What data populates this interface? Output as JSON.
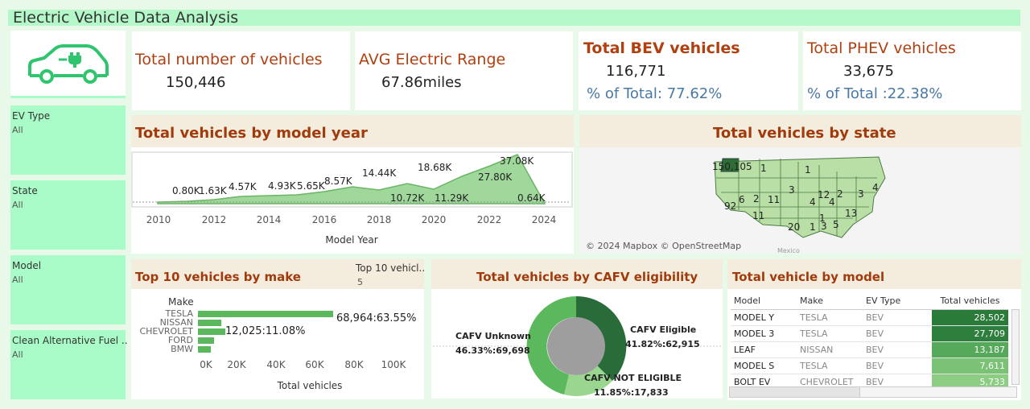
{
  "app": {
    "title": "Electric Vehicle Data Analysis",
    "logo_icon": "ev-car-charging-icon"
  },
  "filters": [
    {
      "label": "EV Type",
      "value": "All"
    },
    {
      "label": "State",
      "value": "All"
    },
    {
      "label": "Model",
      "value": "All"
    },
    {
      "label": "Clean Alternative Fuel ..",
      "value": "All"
    }
  ],
  "kpis": {
    "total_vehicles": {
      "label": "Total number of vehicles",
      "value": "150,446"
    },
    "avg_range": {
      "label": "AVG Electric Range",
      "value": "67.86miles"
    },
    "bev": {
      "label": "Total BEV vehicles",
      "value": "116,771",
      "pct": "% of Total: 77.62%"
    },
    "phev": {
      "label": "Total PHEV vehicles",
      "value": "33,675",
      "pct": "% of Total :22.38%"
    }
  },
  "year_chart": {
    "title": "Total vehicles by model year",
    "xlabel": "Model Year",
    "ticks": [
      "2010",
      "2012",
      "2014",
      "2016",
      "2018",
      "2020",
      "2022",
      "2024"
    ],
    "labels": [
      "0.80K",
      "1.63K",
      "4.57K",
      "4.93K",
      "5.65K",
      "8.57K",
      "14.44K",
      "10.72K",
      "18.68K",
      "11.29K",
      "27.80K",
      "37.08K",
      "0.64K"
    ],
    "color": "#8fd18a"
  },
  "state_map": {
    "title": "Total vehicles by state",
    "attribution": "© 2024 Mapbox © OpenStreetMap",
    "labels": [
      "150,105",
      "1",
      "6",
      "2",
      "11",
      "3",
      "1",
      "12",
      "2",
      "3",
      "4",
      "4",
      "92",
      "11",
      "1",
      "13",
      "20",
      "1",
      "5",
      "3",
      "4",
      "Mexico"
    ]
  },
  "make_chart": {
    "title": "Top 10 vehicles by make",
    "subtitle_label": "Top 10 vehicl..",
    "subtitle_value": "5",
    "axis_header": "Make",
    "xlabel": "Total vehicles",
    "ticks": [
      "0K",
      "20K",
      "40K",
      "60K",
      "80K",
      "100K"
    ],
    "label_top": "68,964:63.55%",
    "label_second": "12,025:11.08%",
    "color": "#5cb85c"
  },
  "cafv": {
    "title": "Total vehicles by CAFV eligibility",
    "unknown_label": "CAFV Unknown",
    "unknown_value": "46.33%:69,698",
    "eligible_label": "CAFV Eligible",
    "eligible_value": "41.82%:62,915",
    "not_label": "CAFV NOT ELIGIBLE",
    "not_value": "11.85%:17,833"
  },
  "model_table": {
    "title": "Total vehicle by model",
    "headers": [
      "Model",
      "Make",
      "EV Type",
      "Total vehicles"
    ],
    "rows": [
      {
        "model": "MODEL Y",
        "make": "TESLA",
        "ev": "BEV",
        "total": "28,502",
        "color": "#2a7a3a"
      },
      {
        "model": "MODEL 3",
        "make": "TESLA",
        "ev": "BEV",
        "total": "27,709",
        "color": "#2e7f3d"
      },
      {
        "model": "LEAF",
        "make": "NISSAN",
        "ev": "BEV",
        "total": "13,187",
        "color": "#56a85a"
      },
      {
        "model": "MODEL S",
        "make": "TESLA",
        "ev": "BEV",
        "total": "7,611",
        "color": "#7cc276"
      },
      {
        "model": "BOLT EV",
        "make": "CHEVROLET",
        "ev": "BEV",
        "total": "5,733",
        "color": "#8ccd83"
      }
    ]
  }
}
